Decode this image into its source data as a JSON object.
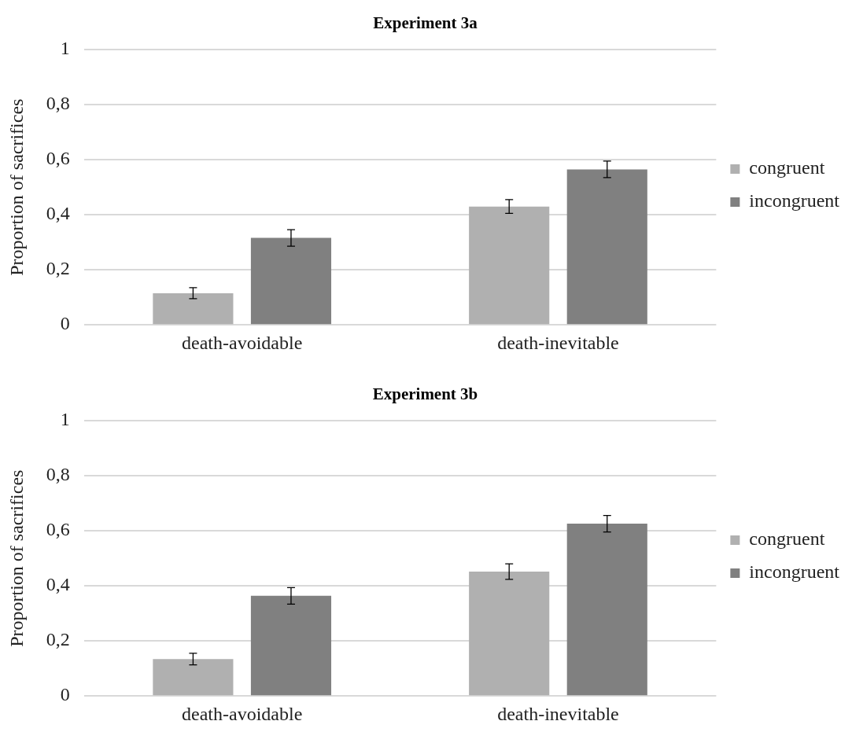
{
  "chart_data": [
    {
      "type": "bar",
      "title": "Experiment 3a",
      "ylabel": "Proportion of sacrifices",
      "categories": [
        "death-avoidable",
        "death-inevitable"
      ],
      "series": [
        {
          "name": "congruent",
          "color": "#b0b0b0",
          "values": [
            0.115,
            0.43
          ],
          "errors": [
            0.02,
            0.025
          ]
        },
        {
          "name": "incongruent",
          "color": "#808080",
          "values": [
            0.316,
            0.565
          ],
          "errors": [
            0.03,
            0.03
          ]
        }
      ],
      "ylim": [
        0,
        1
      ],
      "yticks": [
        {
          "value": 0,
          "label": "0"
        },
        {
          "value": 0.2,
          "label": "0,2"
        },
        {
          "value": 0.4,
          "label": "0,4"
        },
        {
          "value": 0.6,
          "label": "0,6"
        },
        {
          "value": 0.8,
          "label": "0,8"
        },
        {
          "value": 1,
          "label": "1"
        }
      ],
      "grid": "y",
      "legend": "right"
    },
    {
      "type": "bar",
      "title": "Experiment 3b",
      "ylabel": "Proportion of sacrifices",
      "categories": [
        "death-avoidable",
        "death-inevitable"
      ],
      "series": [
        {
          "name": "congruent",
          "color": "#b0b0b0",
          "values": [
            0.134,
            0.452
          ],
          "errors": [
            0.021,
            0.028
          ]
        },
        {
          "name": "incongruent",
          "color": "#808080",
          "values": [
            0.364,
            0.626
          ],
          "errors": [
            0.03,
            0.03
          ]
        }
      ],
      "ylim": [
        0,
        1
      ],
      "yticks": [
        {
          "value": 0,
          "label": "0"
        },
        {
          "value": 0.2,
          "label": "0,2"
        },
        {
          "value": 0.4,
          "label": "0,4"
        },
        {
          "value": 0.6,
          "label": "0,6"
        },
        {
          "value": 0.8,
          "label": "0,8"
        },
        {
          "value": 1,
          "label": "1"
        }
      ],
      "grid": "y",
      "legend": "right"
    }
  ]
}
